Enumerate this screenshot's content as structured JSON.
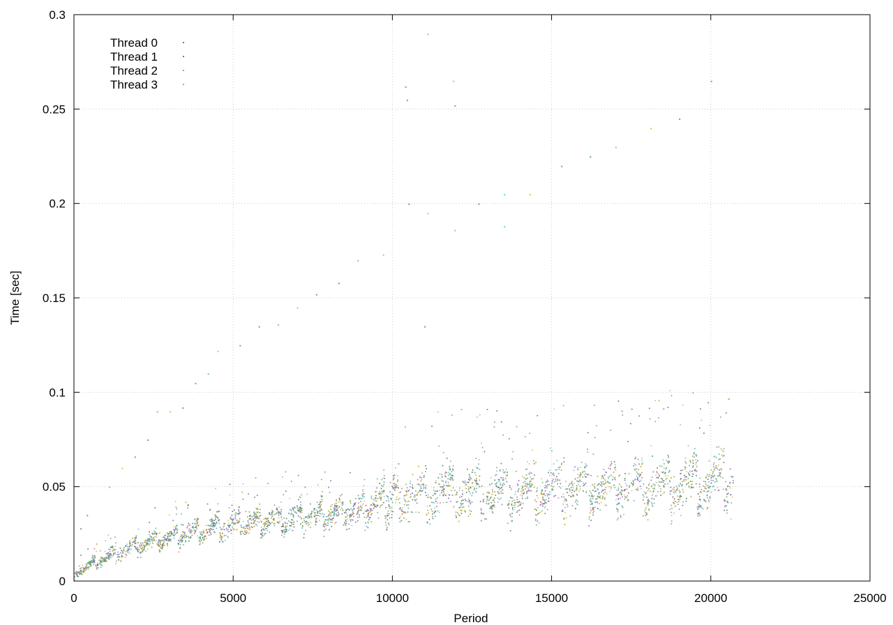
{
  "chart_data": {
    "type": "scatter",
    "title": "",
    "xlabel": "Period",
    "ylabel": "Time [sec]",
    "xlim": [
      0,
      25000
    ],
    "ylim": [
      0,
      0.3
    ],
    "xticks": [
      0,
      5000,
      10000,
      15000,
      20000,
      25000
    ],
    "xtick_labels": [
      "0",
      "5000",
      "10000",
      "15000",
      "20000",
      "25000"
    ],
    "yticks": [
      0,
      0.05,
      0.1,
      0.15,
      0.2,
      0.25,
      0.3
    ],
    "ytick_labels": [
      "0",
      "0.05",
      "0.1",
      "0.15",
      "0.2",
      "0.25",
      "0.3"
    ],
    "grid": true,
    "legend_position": "top-left",
    "series": [
      {
        "name": "Thread 0",
        "color": "#9a5a9e"
      },
      {
        "name": "Thread 1",
        "color": "#3a9c55"
      },
      {
        "name": "Thread 2",
        "color": "#58b4d8"
      },
      {
        "name": "Thread 3",
        "color": "#e0a728"
      }
    ],
    "data_range": {
      "x_max": 20700,
      "typical_band": [
        {
          "x": 0,
          "low": 0.002,
          "mid": 0.004,
          "high": 0.007
        },
        {
          "x": 1000,
          "low": 0.008,
          "mid": 0.012,
          "high": 0.017
        },
        {
          "x": 2000,
          "low": 0.013,
          "mid": 0.018,
          "high": 0.025
        },
        {
          "x": 3000,
          "low": 0.017,
          "mid": 0.022,
          "high": 0.03
        },
        {
          "x": 4000,
          "low": 0.02,
          "mid": 0.026,
          "high": 0.035
        },
        {
          "x": 5000,
          "low": 0.022,
          "mid": 0.028,
          "high": 0.038
        },
        {
          "x": 6000,
          "low": 0.024,
          "mid": 0.03,
          "high": 0.04
        },
        {
          "x": 7000,
          "low": 0.025,
          "mid": 0.032,
          "high": 0.043
        },
        {
          "x": 8000,
          "low": 0.027,
          "mid": 0.034,
          "high": 0.045
        },
        {
          "x": 9000,
          "low": 0.028,
          "mid": 0.036,
          "high": 0.048
        },
        {
          "x": 10000,
          "low": 0.03,
          "mid": 0.04,
          "high": 0.06
        },
        {
          "x": 12000,
          "low": 0.031,
          "mid": 0.042,
          "high": 0.062
        },
        {
          "x": 14000,
          "low": 0.032,
          "mid": 0.043,
          "high": 0.062
        },
        {
          "x": 16000,
          "low": 0.033,
          "mid": 0.045,
          "high": 0.065
        },
        {
          "x": 18000,
          "low": 0.034,
          "mid": 0.047,
          "high": 0.068
        },
        {
          "x": 20700,
          "low": 0.035,
          "mid": 0.048,
          "high": 0.07
        }
      ],
      "outliers": [
        {
          "x": 200,
          "y": 0.028
        },
        {
          "x": 400,
          "y": 0.035
        },
        {
          "x": 1100,
          "y": 0.05
        },
        {
          "x": 1500,
          "y": 0.06
        },
        {
          "x": 1900,
          "y": 0.066
        },
        {
          "x": 2300,
          "y": 0.075
        },
        {
          "x": 2600,
          "y": 0.09
        },
        {
          "x": 3000,
          "y": 0.09
        },
        {
          "x": 3400,
          "y": 0.092
        },
        {
          "x": 3800,
          "y": 0.105
        },
        {
          "x": 4200,
          "y": 0.11
        },
        {
          "x": 4500,
          "y": 0.122
        },
        {
          "x": 5200,
          "y": 0.125
        },
        {
          "x": 5800,
          "y": 0.135
        },
        {
          "x": 6400,
          "y": 0.136
        },
        {
          "x": 7000,
          "y": 0.145
        },
        {
          "x": 7600,
          "y": 0.152
        },
        {
          "x": 8300,
          "y": 0.158
        },
        {
          "x": 8900,
          "y": 0.17
        },
        {
          "x": 9700,
          "y": 0.173
        },
        {
          "x": 10400,
          "y": 0.262
        },
        {
          "x": 10450,
          "y": 0.255
        },
        {
          "x": 11100,
          "y": 0.29
        },
        {
          "x": 11900,
          "y": 0.265
        },
        {
          "x": 11950,
          "y": 0.252
        },
        {
          "x": 12700,
          "y": 0.2
        },
        {
          "x": 13500,
          "y": 0.205
        },
        {
          "x": 14300,
          "y": 0.205
        },
        {
          "x": 15300,
          "y": 0.22
        },
        {
          "x": 16200,
          "y": 0.225
        },
        {
          "x": 17000,
          "y": 0.23
        },
        {
          "x": 18100,
          "y": 0.24
        },
        {
          "x": 19000,
          "y": 0.245
        },
        {
          "x": 20000,
          "y": 0.265
        },
        {
          "x": 11950,
          "y": 0.186
        },
        {
          "x": 11100,
          "y": 0.195
        },
        {
          "x": 10500,
          "y": 0.2
        },
        {
          "x": 11000,
          "y": 0.135
        },
        {
          "x": 13500,
          "y": 0.188
        }
      ]
    }
  }
}
